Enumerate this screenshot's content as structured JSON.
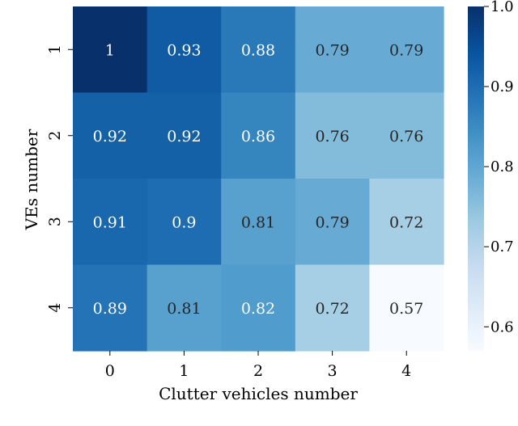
{
  "chart_data": {
    "type": "heatmap",
    "title": "",
    "xlabel": "Clutter vehicles number",
    "ylabel": "VEs number",
    "x_categories": [
      "0",
      "1",
      "2",
      "3",
      "4"
    ],
    "y_categories": [
      "1",
      "2",
      "3",
      "4"
    ],
    "values": [
      [
        1,
        0.93,
        0.88,
        0.79,
        0.79
      ],
      [
        0.92,
        0.92,
        0.86,
        0.76,
        0.76
      ],
      [
        0.91,
        0.9,
        0.81,
        0.79,
        0.72
      ],
      [
        0.89,
        0.81,
        0.82,
        0.72,
        0.57
      ]
    ],
    "value_labels": [
      [
        "1",
        "0.93",
        "0.88",
        "0.79",
        "0.79"
      ],
      [
        "0.92",
        "0.92",
        "0.86",
        "0.76",
        "0.76"
      ],
      [
        "0.91",
        "0.9",
        "0.81",
        "0.79",
        "0.72"
      ],
      [
        "0.89",
        "0.81",
        "0.82",
        "0.72",
        "0.57"
      ]
    ],
    "colorbar": {
      "range": [
        0.57,
        1.0
      ],
      "ticks": [
        0.6,
        0.7,
        0.8,
        0.9,
        1.0
      ],
      "tick_labels": [
        "0.6",
        "0.7",
        "0.8",
        "0.9",
        "1.0"
      ],
      "colormap": "Blues"
    },
    "grid": false,
    "legend": "colorbar-right"
  }
}
